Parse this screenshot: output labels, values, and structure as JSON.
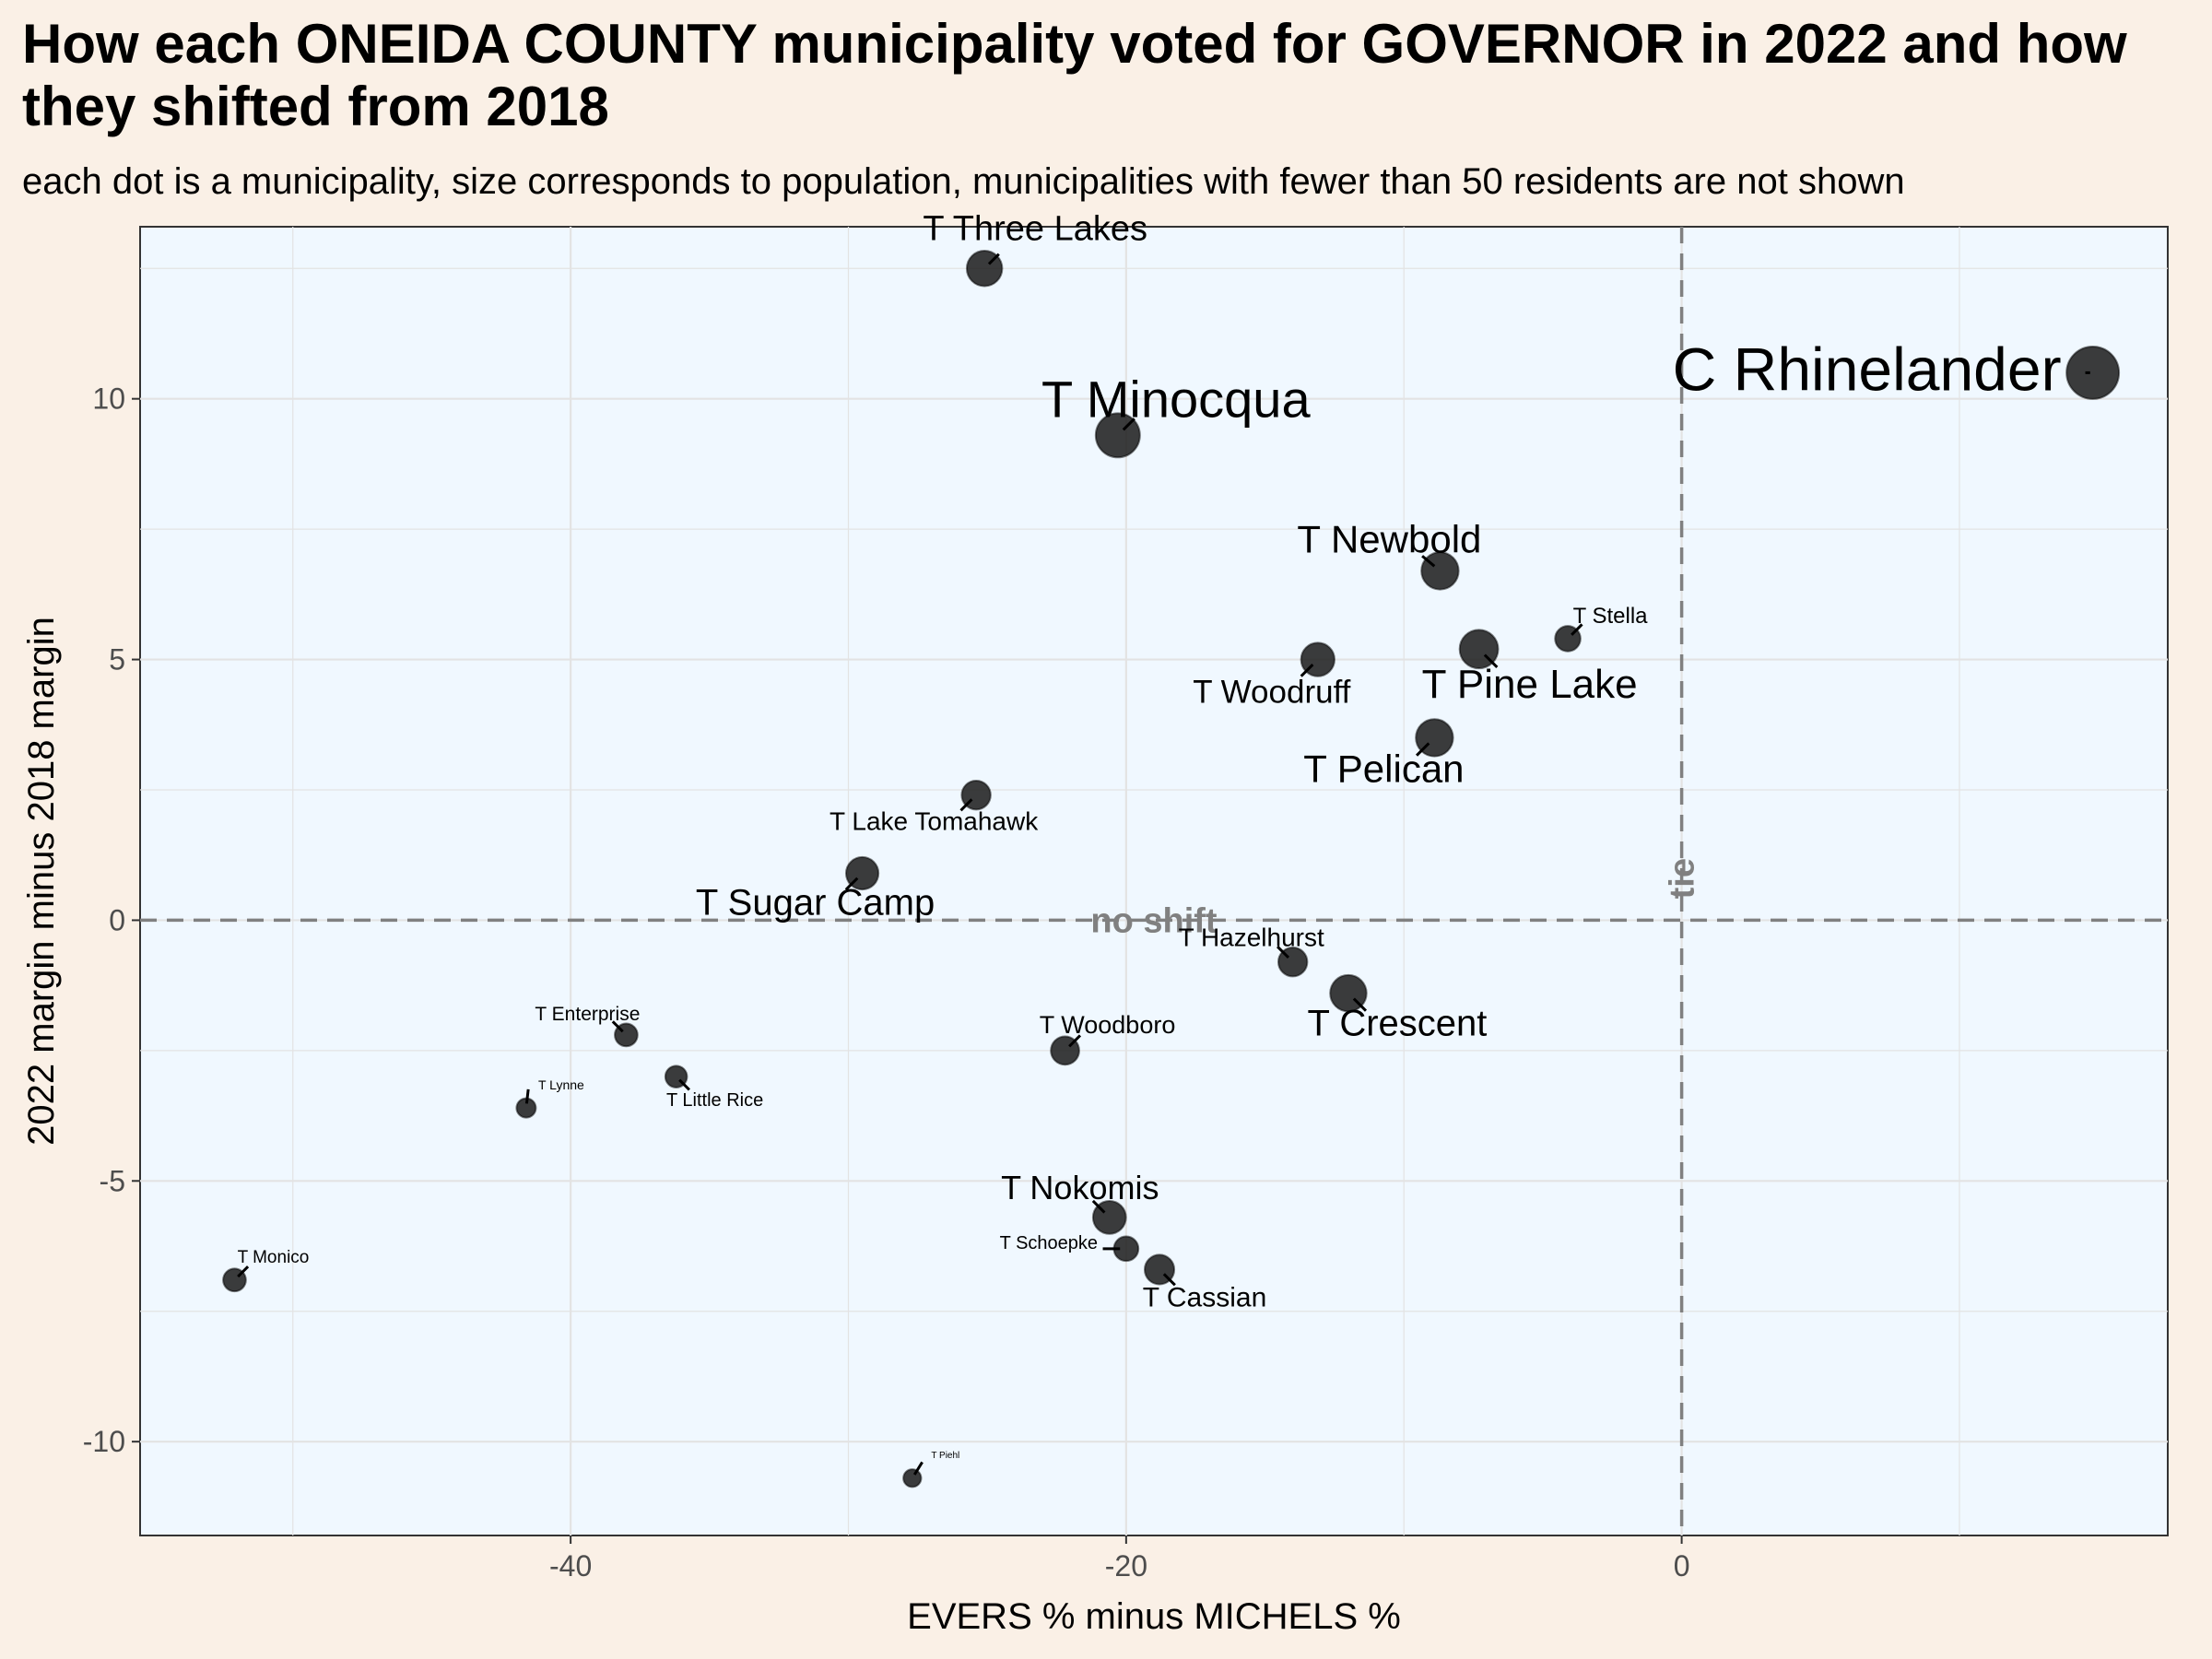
{
  "title": "How each ONEIDA COUNTY municipality voted for GOVERNOR in 2022 and how they shifted from 2018",
  "subtitle": "each dot is a municipality, size corresponds to population, municipalities with fewer than 50 residents are not shown",
  "colors": {
    "page_background": "#faf0e6",
    "panel_background": "#f0f8ff",
    "grid": "#e3e3e3",
    "point": "#1a1a1a",
    "reference_line": "#808080"
  },
  "chart_data": {
    "type": "scatter",
    "xlabel": "EVERS % minus MICHELS %",
    "ylabel": "2022 margin minus 2018 margin",
    "xlim": [
      -55.5,
      17.5
    ],
    "ylim": [
      -11.8,
      13.3
    ],
    "xticks": [
      -40,
      -20,
      0
    ],
    "yticks": [
      -10,
      -5,
      0,
      5,
      10
    ],
    "grid": true,
    "reference_lines": [
      {
        "axis": "y",
        "value": 0,
        "label": "no shift"
      },
      {
        "axis": "x",
        "value": 0,
        "label": "tie"
      }
    ],
    "points": [
      {
        "name": "T Three Lakes",
        "x": -25.1,
        "y": 12.5,
        "size": 2.6
      },
      {
        "name": "C Rhinelander",
        "x": 14.8,
        "y": 10.5,
        "size": 7.5
      },
      {
        "name": "T Minocqua",
        "x": -20.3,
        "y": 9.3,
        "size": 4.8
      },
      {
        "name": "T Newbold",
        "x": -8.7,
        "y": 6.7,
        "size": 3.0
      },
      {
        "name": "T Stella",
        "x": -4.1,
        "y": 5.4,
        "size": 0.9
      },
      {
        "name": "T Woodruff",
        "x": -13.1,
        "y": 5.0,
        "size": 2.2
      },
      {
        "name": "T Pine Lake",
        "x": -7.3,
        "y": 5.2,
        "size": 3.3
      },
      {
        "name": "T Pelican",
        "x": -8.9,
        "y": 3.5,
        "size": 3.0
      },
      {
        "name": "T Lake Tomahawk",
        "x": -25.4,
        "y": 2.4,
        "size": 1.4
      },
      {
        "name": "T Sugar Camp",
        "x": -29.5,
        "y": 0.9,
        "size": 2.0
      },
      {
        "name": "T Hazelhurst",
        "x": -14.0,
        "y": -0.8,
        "size": 1.4
      },
      {
        "name": "T Crescent",
        "x": -12.0,
        "y": -1.4,
        "size": 2.8
      },
      {
        "name": "T Enterprise",
        "x": -38.0,
        "y": -2.2,
        "size": 0.6
      },
      {
        "name": "T Woodboro",
        "x": -22.2,
        "y": -2.5,
        "size": 1.3
      },
      {
        "name": "T Little Rice",
        "x": -36.2,
        "y": -3.0,
        "size": 0.5
      },
      {
        "name": "T Lynne",
        "x": -41.6,
        "y": -3.6,
        "size": 0.3
      },
      {
        "name": "T Nokomis",
        "x": -20.6,
        "y": -5.7,
        "size": 2.1
      },
      {
        "name": "T Schoepke",
        "x": -20.0,
        "y": -6.3,
        "size": 0.8
      },
      {
        "name": "T Cassian",
        "x": -18.8,
        "y": -6.7,
        "size": 1.5
      },
      {
        "name": "T Monico",
        "x": -52.1,
        "y": -6.9,
        "size": 0.6
      },
      {
        "name": "T Piehl",
        "x": -27.7,
        "y": -10.7,
        "size": 0.2
      }
    ]
  }
}
